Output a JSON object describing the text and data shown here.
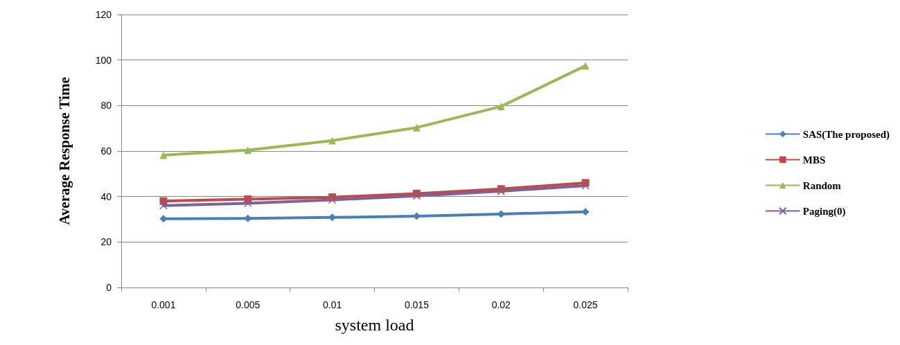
{
  "chart_data": {
    "type": "line",
    "xlabel": "system load",
    "ylabel": "Average Response Time",
    "categories": [
      "0.001",
      "0.005",
      "0.01",
      "0.015",
      "0.02",
      "0.025"
    ],
    "series": [
      {
        "name": "SAS(The proposed)",
        "color": "#4a7ebb",
        "marker": "diamond",
        "values": [
          30.2,
          30.4,
          30.8,
          31.4,
          32.3,
          33.3
        ]
      },
      {
        "name": "MBS",
        "color": "#be4b48",
        "marker": "square",
        "values": [
          38,
          38.8,
          39.7,
          41.3,
          43.3,
          46
        ]
      },
      {
        "name": "Random",
        "color": "#98b954",
        "marker": "triangle",
        "values": [
          58.2,
          60.4,
          64.6,
          70.3,
          79.6,
          97.5
        ]
      },
      {
        "name": "Paging(0)",
        "color": "#7d60a0",
        "marker": "cross",
        "values": [
          36,
          37,
          38.5,
          40.3,
          42.3,
          44.8
        ]
      }
    ],
    "ylim": [
      0,
      120
    ],
    "yticks": [
      0,
      20,
      40,
      60,
      80,
      100,
      120
    ],
    "grid": "y",
    "legend": "right",
    "line_style": "solid"
  }
}
